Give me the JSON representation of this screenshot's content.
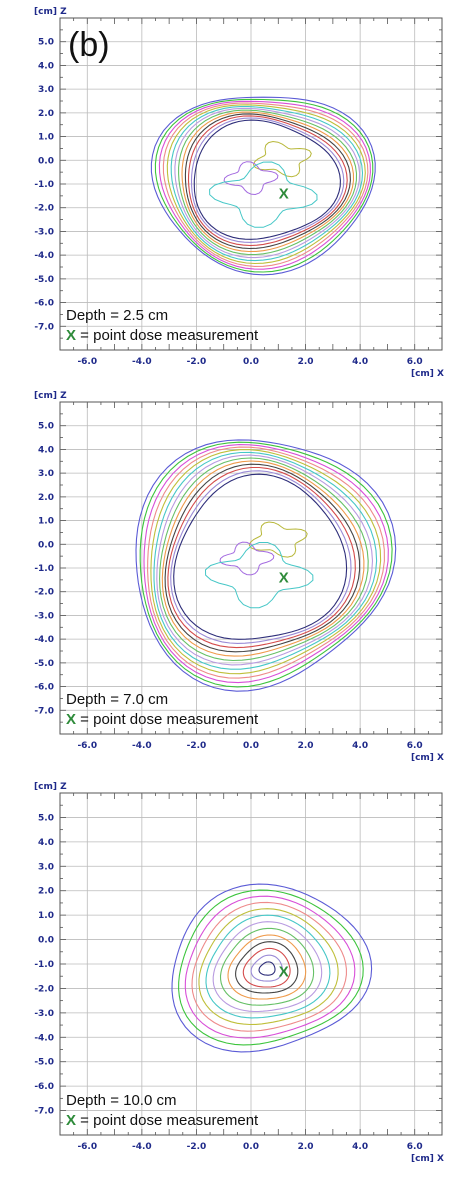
{
  "chart_data": [
    {
      "type": "contour",
      "panel_label": "(b)",
      "xlabel": "[cm] X",
      "ylabel": "[cm] Z",
      "xlim": [
        -7,
        7
      ],
      "ylim": [
        -8,
        6
      ],
      "x_ticks": [
        "-6.0",
        "-4.0",
        "-2.0",
        "0.0",
        "2.0",
        "4.0",
        "6.0"
      ],
      "y_ticks": [
        "5.0",
        "4.0",
        "3.0",
        "2.0",
        "1.0",
        "0.0",
        "-1.0",
        "-2.0",
        "-3.0",
        "-4.0",
        "-5.0",
        "-6.0",
        "-7.0"
      ],
      "depth_text": "Depth = 2.5 cm",
      "marker_symbol": "X",
      "marker_text": " = point dose measurement",
      "point": [
        1.2,
        -1.4
      ],
      "isodose_center": [
        0.45,
        -0.85
      ],
      "outer_radii": [
        3.9,
        3.9
      ],
      "inner_ring_fraction": 0.66,
      "grid": true
    },
    {
      "type": "contour",
      "panel_label": "",
      "xlabel": "[cm] X",
      "ylabel": "[cm] Z",
      "xlim": [
        -7,
        7
      ],
      "ylim": [
        -8,
        6
      ],
      "x_ticks": [
        "-6.0",
        "-4.0",
        "-2.0",
        "0.0",
        "2.0",
        "4.0",
        "6.0"
      ],
      "y_ticks": [
        "5.0",
        "4.0",
        "3.0",
        "2.0",
        "1.0",
        "0.0",
        "-1.0",
        "-2.0",
        "-3.0",
        "-4.0",
        "-5.0",
        "-6.0",
        "-7.0"
      ],
      "depth_text": "Depth = 7.0 cm",
      "marker_symbol": "X",
      "marker_text": " = point dose measurement",
      "point": [
        1.2,
        -1.4
      ],
      "isodose_center": [
        0.3,
        -0.7
      ],
      "outer_radii": [
        4.6,
        5.4
      ],
      "inner_ring_fraction": 0.66,
      "grid": true
    },
    {
      "type": "contour",
      "panel_label": "",
      "xlabel": "[cm] X",
      "ylabel": "[cm] Z",
      "xlim": [
        -7,
        7
      ],
      "ylim": [
        -8,
        6
      ],
      "x_ticks": [
        "-6.0",
        "-4.0",
        "-2.0",
        "0.0",
        "2.0",
        "4.0",
        "6.0"
      ],
      "y_ticks": [
        "5.0",
        "4.0",
        "3.0",
        "2.0",
        "1.0",
        "0.0",
        "-1.0",
        "-2.0",
        "-3.0",
        "-4.0",
        "-5.0",
        "-6.0",
        "-7.0"
      ],
      "depth_text": "Depth = 10.0 cm",
      "marker_symbol": "X",
      "marker_text": " = point dose measurement",
      "point": [
        1.2,
        -1.3
      ],
      "isodose_center": [
        0.6,
        -1.2
      ],
      "outer_radii": [
        3.6,
        3.4
      ],
      "inner_ring_fraction": 0.08,
      "grid": true
    }
  ],
  "colors": {
    "isodose_lines": [
      "#5b5bd6",
      "#3cc43c",
      "#d84fd8",
      "#ee8a8a",
      "#bfbf3a",
      "#46c7c7",
      "#b89be0",
      "#66c066",
      "#ef9a4a",
      "#444444",
      "#d44c4c",
      "#9a8ad6",
      "#2e2e7a"
    ],
    "marker_green": "#2e8b3a",
    "axis_label": "#1f2a8a",
    "grid": "#bbbbbb"
  }
}
